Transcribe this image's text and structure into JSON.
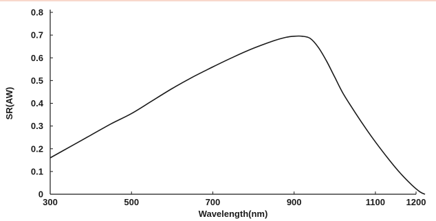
{
  "chart_data": {
    "type": "line",
    "title": "",
    "xlabel": "Wavelength(nm)",
    "ylabel": "SR(AW)",
    "xlim": [
      300,
      1200
    ],
    "ylim": [
      0,
      0.8
    ],
    "xticks": [
      300,
      500,
      700,
      900,
      1100,
      1200
    ],
    "yticks": [
      0,
      0.1,
      0.2,
      0.3,
      0.4,
      0.5,
      0.6,
      0.7,
      0.8
    ],
    "xtick_labels": [
      "300",
      "500",
      "700",
      "900",
      "1100",
      "1200"
    ],
    "ytick_labels": [
      "0",
      "0.1",
      "0.2",
      "0.3",
      "0.4",
      "0.5",
      "0.6",
      "0.7",
      "0.8"
    ],
    "grid": false,
    "legend": "none",
    "series": [
      {
        "color": "#1a1a1a",
        "x": [
          300,
          350,
          400,
          450,
          500,
          550,
          600,
          650,
          700,
          750,
          800,
          850,
          880,
          900,
          920,
          940,
          960,
          980,
          1000,
          1020,
          1050,
          1080,
          1100,
          1130,
          1160,
          1190,
          1210,
          1222
        ],
        "y": [
          0.16,
          0.21,
          0.26,
          0.31,
          0.355,
          0.41,
          0.465,
          0.515,
          0.56,
          0.603,
          0.642,
          0.675,
          0.69,
          0.695,
          0.695,
          0.685,
          0.645,
          0.585,
          0.515,
          0.445,
          0.36,
          0.28,
          0.23,
          0.16,
          0.095,
          0.04,
          0.01,
          0
        ]
      }
    ]
  },
  "colors": {
    "top_rule": "#f8d8cc",
    "axis": "#1a1a1a"
  }
}
